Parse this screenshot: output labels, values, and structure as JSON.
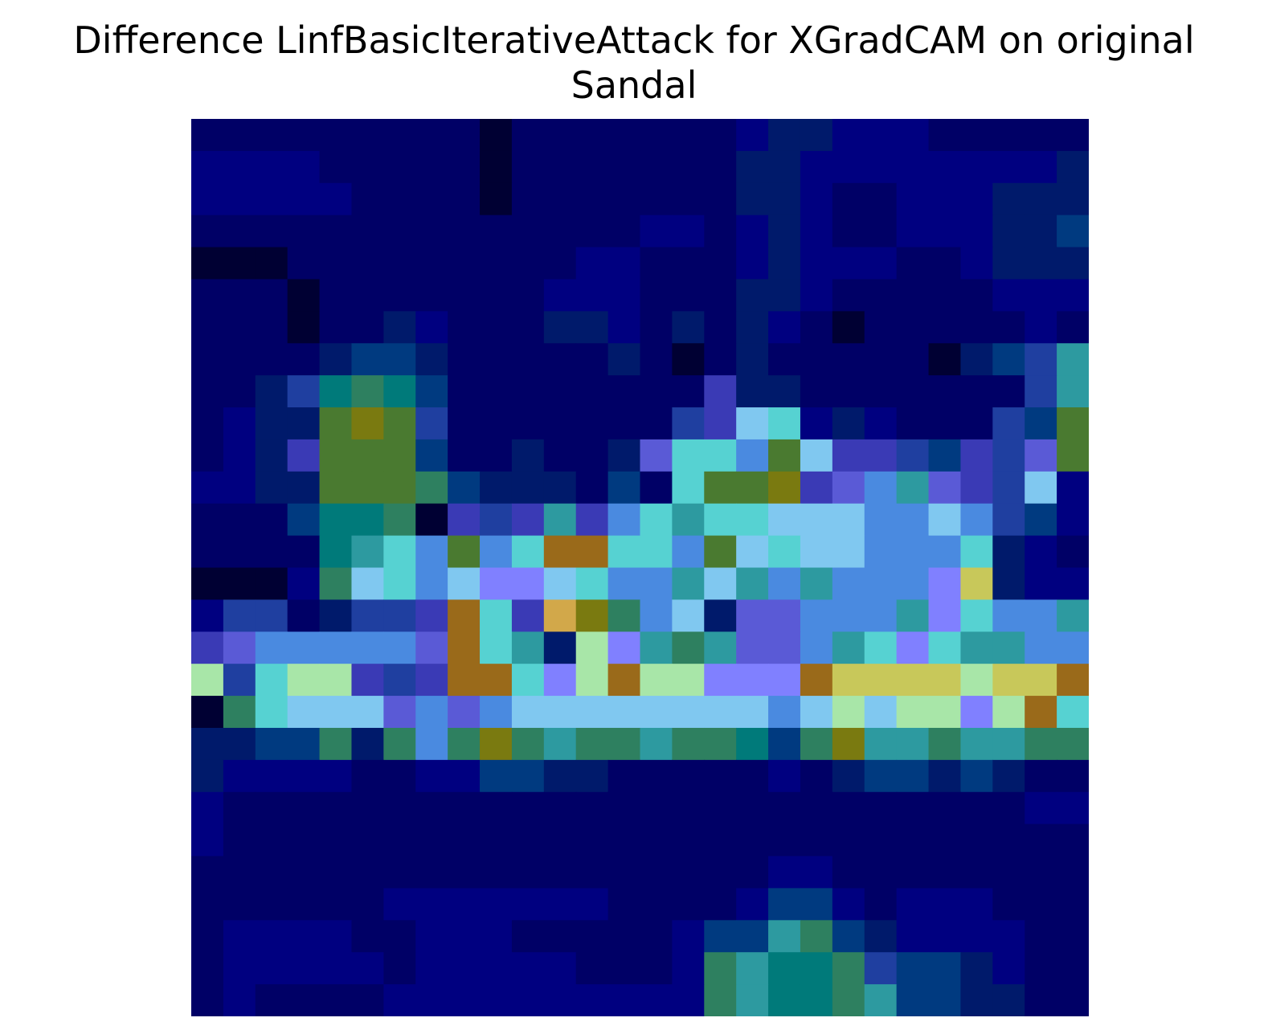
{
  "chart_data": {
    "type": "heatmap",
    "title_lines": [
      "Difference LinfBasicIterativeAttack for XGradCAM on original",
      "Sandal"
    ],
    "xlabel": "",
    "ylabel": "",
    "grid": false,
    "axes_visible": false,
    "rows": 28,
    "cols": 28,
    "palette": [
      "#000033",
      "#000066",
      "#000080",
      "#001a6b",
      "#003a80",
      "#1f3fa0",
      "#3a3ab5",
      "#5a5ad6",
      "#4a8ae0",
      "#2d9aa0",
      "#2e8060",
      "#007a7a",
      "#4a7a30",
      "#7a7a10",
      "#56d2d2",
      "#80c8f0",
      "#8080ff",
      "#a8e6a8",
      "#c8c85a",
      "#d2a84a",
      "#9a6a1a"
    ],
    "cells": [
      "1111111110111111123322211111",
      "2222111110111111133222222223",
      "2222211110111111133211222333",
      "1111111111111122123211222334",
      "0001111111112211123222112333",
      "1110111111122211133211111222",
      "1110113211133213132101111121",
      "1111344311111310131111103459",
      "1135BAB411111111633111111159",
      "1233CDC5111111156FE23211154C",
      "1236CCC41131137EE8CF6654657C",
      "2233CCCA4333141ECCD6789765F2",
      "1114BBA0656968E9EEFFF88F8542",
      "1111B9E8C8ETTEE8CFEFF888E321",
      "0002AFE8FGGFE889F989888GI322",
      "25513556OE6JDA8F3778889GE889",
      "67888887OE93HG9A97789EGE9988",
      "H5EHH656OOEGHQHHGGGQIIIIHIIQ",
      "0AEFFF7878FFFFFFFF8FHFHHGHQE",
      "3344A3A8ADA9AA9AAB4AD99A99AA",
      "3222211224433111112134434311",
      "2111111111111111111111111122",
      "2111111111111111111111111111",
      "1111111111111111112211111111",
      "1111112222222111124421222111",
      "1222211222111112449A43222211",
      "1222221222221112A9BBA5443211",
      "1211112222222222A9BBA9443311"
    ]
  }
}
